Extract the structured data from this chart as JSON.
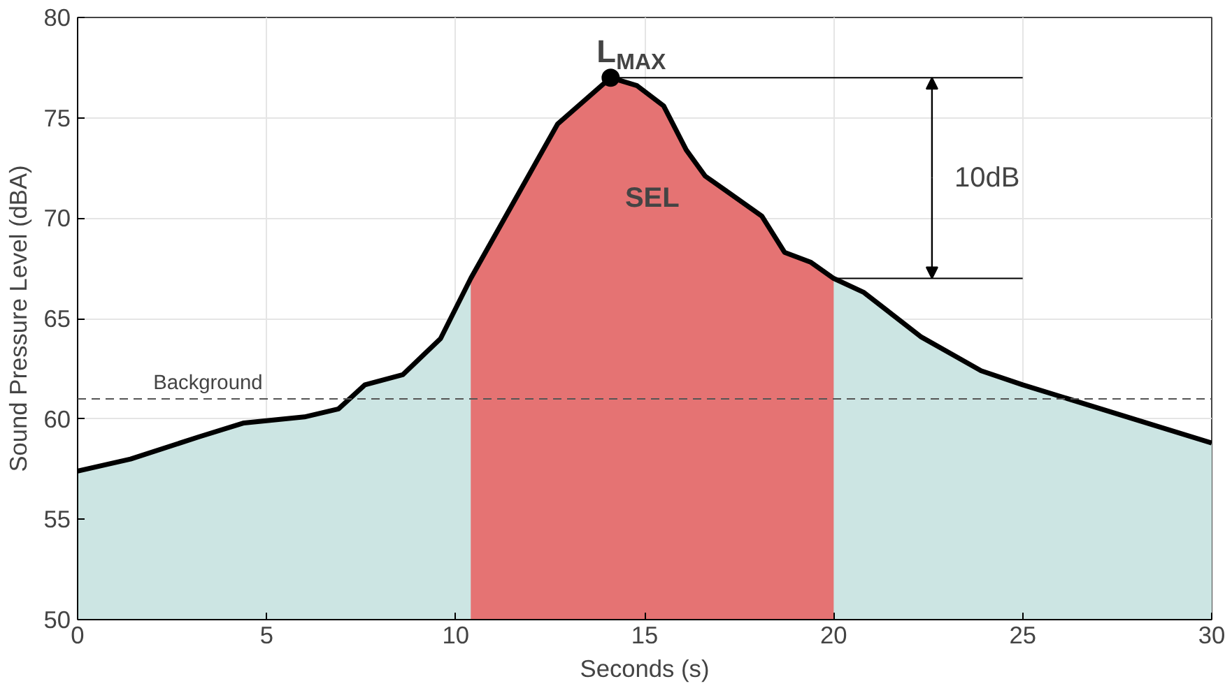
{
  "chart_data": {
    "type": "area",
    "xlabel": "Seconds (s)",
    "ylabel": "Sound Pressure Level (dBA)",
    "x": [
      0,
      1.4,
      3.2,
      4.4,
      6,
      6.9,
      7.6,
      8.6,
      9.6,
      10.4,
      12.7,
      14.1,
      14.8,
      15.5,
      16.1,
      16.6,
      17.2,
      18.1,
      18.7,
      19.4,
      20,
      20.8,
      22.3,
      23.9,
      25,
      30
    ],
    "series": [
      {
        "color": "#cce5e3",
        "values": [
          57.4,
          58.0,
          59.1,
          59.8,
          60.1,
          60.5,
          61.7,
          62.2,
          64.0,
          67.0,
          74.7,
          77.0,
          76.6,
          75.6,
          73.4,
          72.1,
          71.3,
          70.1,
          68.3,
          67.8,
          67.0,
          66.3,
          64.1,
          62.4,
          61.7,
          58.8
        ]
      },
      {
        "type": "area",
        "color": "#e57373",
        "x": [
          10.4,
          12.7,
          14.1,
          14.8,
          15.5,
          16.1,
          16.6,
          17.2,
          18.1,
          18.7,
          19.4,
          20
        ],
        "values": [
          67.0,
          74.7,
          77.0,
          76.6,
          75.6,
          73.4,
          72.1,
          71.3,
          70.1,
          68.3,
          67.8,
          67.0
        ]
      },
      {
        "type": "line",
        "color": "#000000",
        "x": [
          14.1,
          25
        ],
        "values": [
          77,
          77
        ]
      },
      {
        "type": "line",
        "color": "#000000",
        "x": [
          20,
          25
        ],
        "values": [
          67,
          67
        ]
      },
      {
        "type": "scatter",
        "color": "#000000",
        "x": [
          14.1
        ],
        "values": [
          77.0
        ]
      }
    ],
    "xlim": [
      0,
      30
    ],
    "xticks": [
      0,
      5,
      10,
      15,
      20,
      25,
      30
    ],
    "ylim": [
      50,
      80
    ],
    "yticks": [
      50,
      55,
      60,
      65,
      70,
      75,
      80
    ],
    "grid": true,
    "ref_lines": [
      {
        "axis": "y",
        "value": 61,
        "label": "Background",
        "color": "#555555",
        "line_style": "dashed"
      }
    ],
    "annotations": [
      {
        "text": "L$_{MAX}$",
        "x": 14.1,
        "y": 77
      },
      "SEL",
      {
        "text": "10dB",
        "x": 22.6,
        "y": 77
      }
    ]
  }
}
